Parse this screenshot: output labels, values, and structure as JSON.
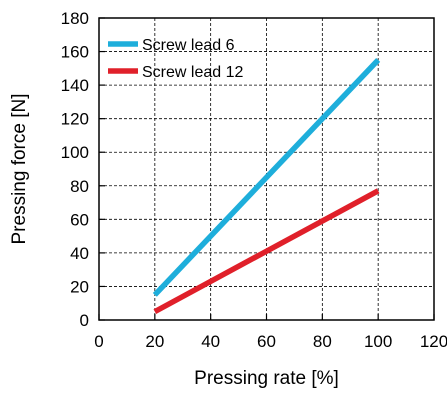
{
  "chart_data": {
    "type": "line",
    "xlabel": "Pressing rate [%]",
    "ylabel": "Pressing force [N]",
    "xlim": [
      0,
      120
    ],
    "ylim": [
      0,
      180
    ],
    "xticks": [
      "0",
      "20",
      "40",
      "60",
      "80",
      "100",
      "120"
    ],
    "yticks": [
      "0",
      "20",
      "40",
      "60",
      "80",
      "100",
      "120",
      "140",
      "160",
      "180"
    ],
    "grid": true,
    "legend_position": "top-left",
    "series": [
      {
        "name": "Screw lead 6",
        "color": "#1EAEDB",
        "x": [
          20,
          100
        ],
        "y": [
          15,
          155
        ]
      },
      {
        "name": "Screw lead 12",
        "color": "#E0202A",
        "x": [
          20,
          100
        ],
        "y": [
          5,
          77
        ]
      }
    ]
  }
}
